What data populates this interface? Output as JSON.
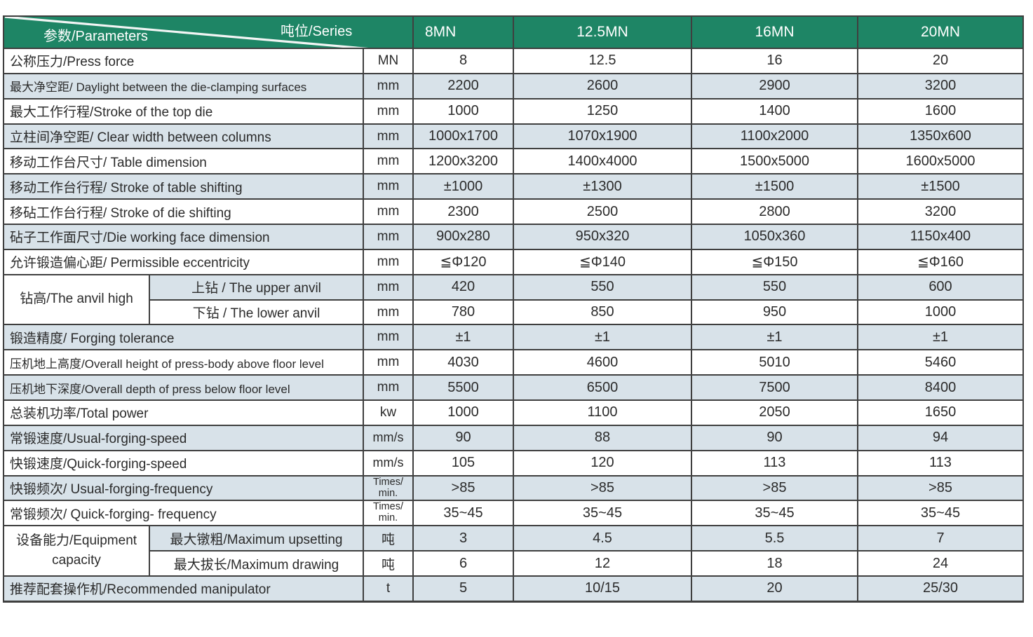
{
  "header": {
    "corner_top": "吨位/Series",
    "corner_bottom": "参数/Parameters",
    "columns": [
      "8MN",
      "12.5MN",
      "16MN",
      "20MN"
    ]
  },
  "rows": [
    {
      "label": "公称压力/Press force",
      "unit": "MN",
      "values": [
        "8",
        "12.5",
        "16",
        "20"
      ]
    },
    {
      "label": "最大净空距/ Daylight between the die-clamping surfaces",
      "unit": "mm",
      "values": [
        "2200",
        "2600",
        "2900",
        "3200"
      ]
    },
    {
      "label": "最大工作行程/Stroke of the top die",
      "unit": "mm",
      "values": [
        "1000",
        "1250",
        "1400",
        "1600"
      ]
    },
    {
      "label": "立柱间净空距/ Clear width between columns",
      "unit": "mm",
      "values": [
        "1000x1700",
        "1070x1900",
        "1100x2000",
        "1350x600"
      ]
    },
    {
      "label": "移动工作台尺寸/ Table dimension",
      "unit": "mm",
      "values": [
        "1200x3200",
        "1400x4000",
        "1500x5000",
        "1600x5000"
      ]
    },
    {
      "label": "移动工作台行程/ Stroke of table shifting",
      "unit": "mm",
      "values": [
        "±1000",
        "±1300",
        "±1500",
        "±1500"
      ]
    },
    {
      "label": "移砧工作台行程/ Stroke of die shifting",
      "unit": "mm",
      "values": [
        "2300",
        "2500",
        "2800",
        "3200"
      ]
    },
    {
      "label": "砧子工作面尺寸/Die working face dimension",
      "unit": "mm",
      "values": [
        "900x280",
        "950x320",
        "1050x360",
        "1150x400"
      ]
    },
    {
      "label": "允许锻造偏心距/ Permissible eccentricity",
      "unit": "mm",
      "values": [
        "≦Φ120",
        "≦Φ140",
        "≦Φ150",
        "≦Φ160"
      ]
    },
    {
      "group_lines": [
        "钻高/The anvil high"
      ],
      "sub_label": "上钻 / The upper anvil",
      "unit": "mm",
      "values": [
        "420",
        "550",
        "550",
        "600"
      ]
    },
    {
      "sub_label": "下钻 / The lower anvil",
      "unit": "mm",
      "values": [
        "780",
        "850",
        "950",
        "1000"
      ]
    },
    {
      "label": "锻造精度/ Forging tolerance",
      "unit": "mm",
      "values": [
        "±1",
        "±1",
        "±1",
        "±1"
      ]
    },
    {
      "label": "压机地上高度/Overall height of press-body above floor level",
      "unit": "mm",
      "values": [
        "4030",
        "4600",
        "5010",
        "5460"
      ]
    },
    {
      "label": "压机地下深度/Overall depth of press below floor level",
      "unit": "mm",
      "values": [
        "5500",
        "6500",
        "7500",
        "8400"
      ]
    },
    {
      "label": "总装机功率/Total power",
      "unit": "kw",
      "values": [
        "1000",
        "1100",
        "2050",
        "1650"
      ]
    },
    {
      "label": "常锻速度/Usual-forging-speed",
      "unit": "mm/s",
      "values": [
        "90",
        "88",
        "90",
        "94"
      ]
    },
    {
      "label": "快锻速度/Quick-forging-speed",
      "unit": "mm/s",
      "values": [
        "105",
        "120",
        "113",
        "113"
      ]
    },
    {
      "label": "快锻频次/ Usual-forging-frequency",
      "unit": [
        "Times/",
        "min."
      ],
      "values": [
        ">85",
        ">85",
        ">85",
        ">85"
      ]
    },
    {
      "label": "常锻频次/ Quick-forging- frequency",
      "unit": [
        "Times/",
        "min."
      ],
      "values": [
        "35~45",
        "35~45",
        "35~45",
        "35~45"
      ]
    },
    {
      "group_lines": [
        "设备能力/Equipment",
        "capacity"
      ],
      "sub_label": "最大镦粗/Maximum upsetting",
      "unit": "吨",
      "values": [
        "3",
        "4.5",
        "5.5",
        "7"
      ]
    },
    {
      "sub_label": "最大拔长/Maximum drawing",
      "unit": "吨",
      "values": [
        "6",
        "12",
        "18",
        "24"
      ]
    },
    {
      "label": "推荐配套操作机/Recommended manipulator",
      "unit": "t",
      "values": [
        "5",
        "10/15",
        "20",
        "25/30"
      ]
    }
  ],
  "colors": {
    "header_green": "#1e8565",
    "stripe_blue": "#d8e2e9",
    "border": "#3f3f3f",
    "text": "#2b2b2b"
  }
}
